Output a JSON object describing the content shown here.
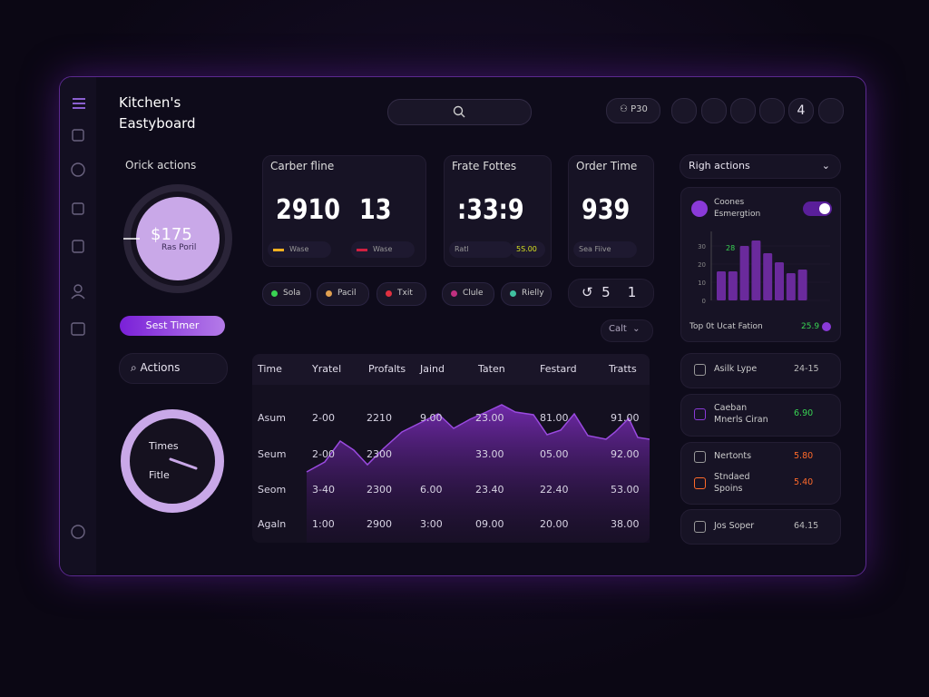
{
  "header": {
    "title": [
      "Kitchen's",
      "Eastyboard"
    ],
    "user_button": "P30",
    "badge": "4"
  },
  "left": {
    "section_title": "Orick actions",
    "ring": {
      "value": "$175",
      "caption": "Ras Poril"
    },
    "button": "Sest Timer",
    "search": "Actions",
    "gauge": {
      "top": "Times",
      "bottom": "Fitle"
    }
  },
  "cards": [
    {
      "title": "Carber fline",
      "values": [
        "2910",
        "13"
      ],
      "legend": [
        "Wase",
        "Wase"
      ]
    },
    {
      "title": "Frate Fottes",
      "values": [
        ":33:9"
      ],
      "legend": [
        "Ratl",
        "5S.00"
      ]
    },
    {
      "title": "Order Time",
      "values": [
        "939"
      ],
      "legend": [
        "Sea Fiive"
      ]
    }
  ],
  "chips": [
    "Sola",
    "Pacil",
    "Txit",
    "Clule",
    "Rielly"
  ],
  "counter": [
    "5",
    "1"
  ],
  "dropdown": "Calt",
  "table": {
    "headers": [
      "Time",
      "Yratel",
      "Profalts",
      "Jaind",
      "Taten",
      "Festard",
      "Tratts"
    ],
    "rows": [
      [
        "Asum",
        "2-00",
        "2210",
        "9.00",
        "23.00",
        "81.00",
        "91.00"
      ],
      [
        "Seum",
        "2-00",
        "2300",
        null,
        "33.00",
        "05.00",
        "92.00"
      ],
      [
        "Seom",
        "3-40",
        "2300",
        "6.00",
        "23.40",
        "22.40",
        "53.00"
      ],
      [
        "Agaln",
        "1:00",
        "2900",
        "3:00",
        "09.00",
        "20.00",
        "38.00"
      ]
    ]
  },
  "right": {
    "dropdown": "Righ actions",
    "card_title": [
      "Coones",
      "Esmergtion"
    ],
    "chart_data": {
      "type": "bar",
      "values": [
        16,
        16,
        30,
        33,
        26,
        21,
        15,
        17
      ],
      "color": "#6a2a9c",
      "ylim": [
        0,
        40
      ],
      "yticks": [
        0,
        10,
        20,
        30
      ],
      "annotation": "28"
    },
    "card_footer": {
      "label": "Top 0t Ucat Fation",
      "value": "25.9"
    },
    "list": [
      {
        "label": [
          "Asilk Lype"
        ],
        "value": "24-15",
        "color": "#bbb"
      },
      {
        "label": [
          "Caeban",
          "Mnerls Ciran"
        ],
        "value": "6.90",
        "color": "#39d353"
      },
      {
        "label": [
          "Nertonts"
        ],
        "value": "5.80",
        "color": "#ff6a2a"
      },
      {
        "label": [
          "Stndaed",
          "Spoins"
        ],
        "value": "5.40",
        "color": "#ff6a2a"
      },
      {
        "label": [
          "Jos Soper"
        ],
        "value": "64.15",
        "color": "#bbb"
      }
    ]
  }
}
